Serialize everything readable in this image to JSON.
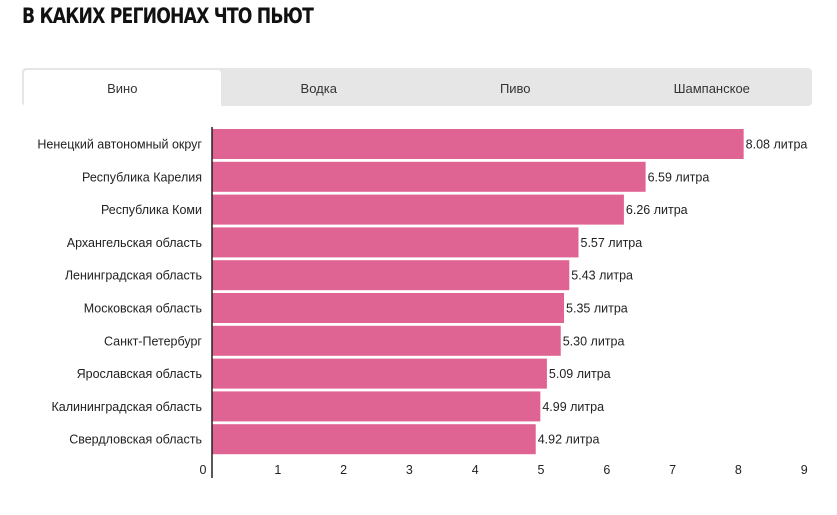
{
  "page": {
    "title": "В КАКИХ РЕГИОНАХ ЧТО ПЬЮТ"
  },
  "tabs": [
    {
      "label": "Вино",
      "active": true
    },
    {
      "label": "Водка",
      "active": false
    },
    {
      "label": "Пиво",
      "active": false
    },
    {
      "label": "Шампанское",
      "active": false
    }
  ],
  "chart_data": {
    "type": "bar",
    "orientation": "horizontal",
    "categories": [
      "Ненецкий автономный округ",
      "Республика Карелия",
      "Республика Коми",
      "Архангельская область",
      "Ленинградская область",
      "Московская область",
      "Санкт-Петербург",
      "Ярославская область",
      "Калининградская область",
      "Свердловская область"
    ],
    "values": [
      8.08,
      6.59,
      6.26,
      5.57,
      5.43,
      5.35,
      5.3,
      5.09,
      4.99,
      4.92
    ],
    "value_labels": [
      "8.08 литра",
      "6.59 литра",
      "6.26 литра",
      "5.57 литра",
      "5.43 литра",
      "5.35 литра",
      "5.30 литра",
      "5.09 литра",
      "4.99 литра",
      "4.92 литра"
    ],
    "xlim": [
      0,
      9
    ],
    "xticks": [
      0,
      1,
      2,
      3,
      4,
      5,
      6,
      7,
      8,
      9
    ],
    "bar_color": "#e06493",
    "grid": false
  }
}
